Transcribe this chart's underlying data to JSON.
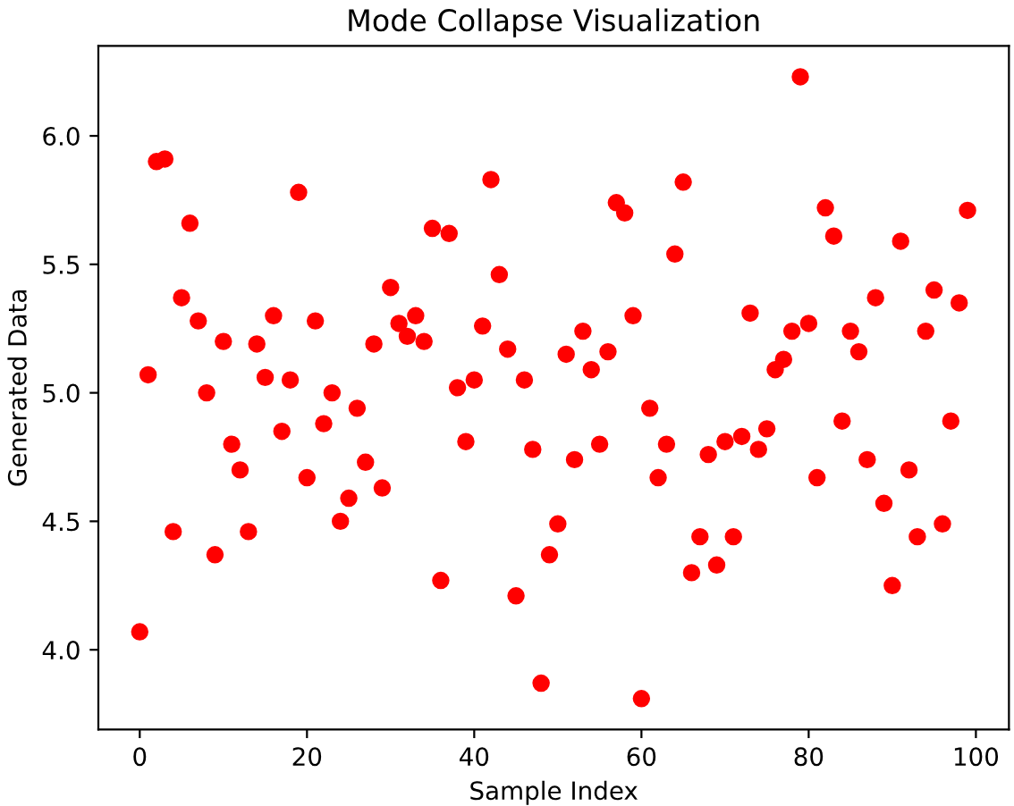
{
  "chart_data": {
    "type": "scatter",
    "title": "Mode Collapse Visualization",
    "xlabel": "Sample Index",
    "ylabel": "Generated Data",
    "x": [
      0,
      1,
      2,
      3,
      4,
      5,
      6,
      7,
      8,
      9,
      10,
      11,
      12,
      13,
      14,
      15,
      16,
      17,
      18,
      19,
      20,
      21,
      22,
      23,
      24,
      25,
      26,
      27,
      28,
      29,
      30,
      31,
      32,
      33,
      34,
      35,
      36,
      37,
      38,
      39,
      40,
      41,
      42,
      43,
      44,
      45,
      46,
      47,
      48,
      49,
      50,
      51,
      52,
      53,
      54,
      55,
      56,
      57,
      58,
      59,
      60,
      61,
      62,
      63,
      64,
      65,
      66,
      67,
      68,
      69,
      70,
      71,
      72,
      73,
      74,
      75,
      76,
      77,
      78,
      79,
      80,
      81,
      82,
      83,
      84,
      85,
      86,
      87,
      88,
      89,
      90,
      91,
      92,
      93,
      94,
      95,
      96,
      97,
      98,
      99
    ],
    "values": [
      4.07,
      5.07,
      5.9,
      5.91,
      4.46,
      5.37,
      5.66,
      5.28,
      5.0,
      4.37,
      5.2,
      4.8,
      4.7,
      4.46,
      5.19,
      5.06,
      5.3,
      4.85,
      5.05,
      5.78,
      4.67,
      5.28,
      4.88,
      5.0,
      4.5,
      4.59,
      4.94,
      4.73,
      5.19,
      4.63,
      5.41,
      5.27,
      5.22,
      5.3,
      5.2,
      5.64,
      4.27,
      5.62,
      5.02,
      4.81,
      5.05,
      5.26,
      5.83,
      5.46,
      5.17,
      4.21,
      5.05,
      4.78,
      3.87,
      4.37,
      4.49,
      5.15,
      4.74,
      5.24,
      5.09,
      4.8,
      5.16,
      5.74,
      5.7,
      5.3,
      3.81,
      4.94,
      4.67,
      4.8,
      5.54,
      5.82,
      4.3,
      4.44,
      4.76,
      4.33,
      4.81,
      4.44,
      4.83,
      5.31,
      4.78,
      4.86,
      5.09,
      5.13,
      5.24,
      6.23,
      5.27,
      4.67,
      5.72,
      5.61,
      4.89,
      5.24,
      5.16,
      4.74,
      5.37,
      4.57,
      4.25,
      5.59,
      4.7,
      4.44,
      5.24,
      5.4,
      4.49,
      4.89,
      5.35,
      5.71
    ],
    "color": "#ff0000",
    "marker": "circle",
    "xlim": [
      -4.95,
      103.95
    ],
    "xticks": [
      0,
      20,
      40,
      60,
      80,
      100
    ],
    "ylim": [
      3.69,
      6.35
    ],
    "yticks": [
      {
        "value": 4.0,
        "label": "4.0"
      },
      {
        "value": 4.5,
        "label": "4.5"
      },
      {
        "value": 5.0,
        "label": "5.0"
      },
      {
        "value": 5.5,
        "label": "5.5"
      },
      {
        "value": 6.0,
        "label": "6.0"
      }
    ],
    "grid": false
  }
}
